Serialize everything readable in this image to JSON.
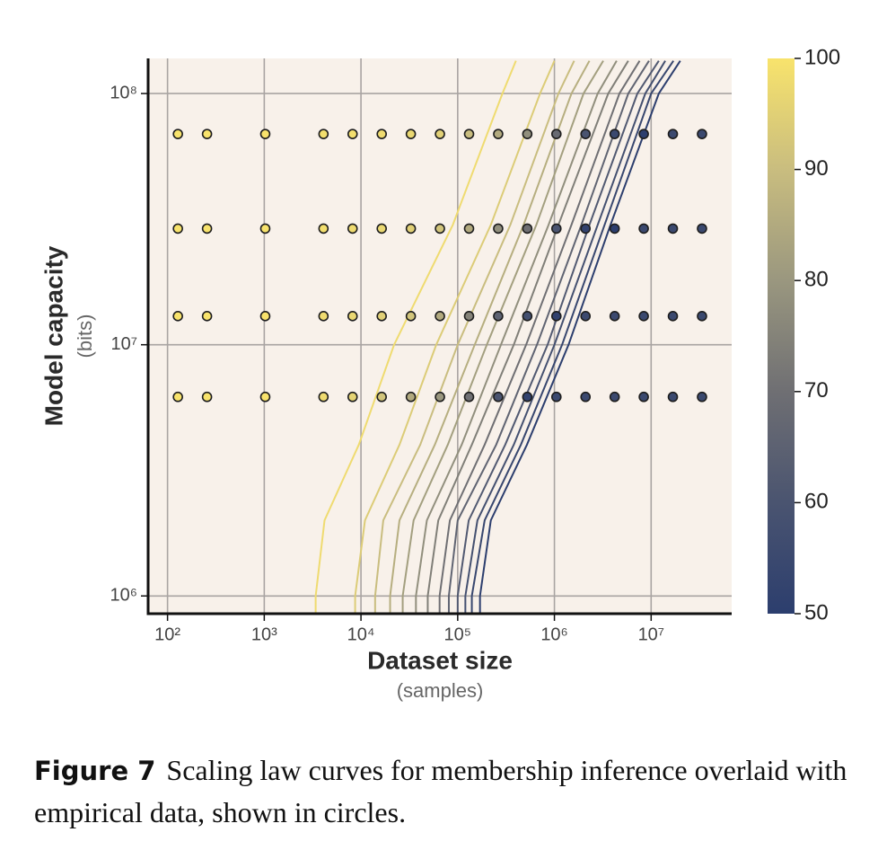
{
  "chart_data": {
    "type": "scatter",
    "xlabel": "Dataset size",
    "xlabel_unit": "(samples)",
    "ylabel": "Model capacity",
    "ylabel_unit": "(bits)",
    "log_x": true,
    "log_y": true,
    "grid": true,
    "xlim": [
      63,
      68000000
    ],
    "ylim": [
      850000,
      138000000
    ],
    "xticks": [
      {
        "value": 100,
        "label": "10²"
      },
      {
        "value": 1000,
        "label": "10³"
      },
      {
        "value": 10000,
        "label": "10⁴"
      },
      {
        "value": 100000,
        "label": "10⁵"
      },
      {
        "value": 1000000,
        "label": "10⁶"
      },
      {
        "value": 10000000,
        "label": "10⁷"
      }
    ],
    "yticks": [
      {
        "value": 1000000,
        "label": "10⁶"
      },
      {
        "value": 10000000,
        "label": "10⁷"
      },
      {
        "value": 100000000,
        "label": "10⁸"
      }
    ],
    "colormap": [
      "#2c3e6e",
      "#4a5470",
      "#6f6f73",
      "#9a977f",
      "#c9bd7f",
      "#f8e36c"
    ],
    "clim": [
      50,
      100
    ],
    "cticks": [
      50,
      60,
      70,
      80,
      90,
      100
    ],
    "x": [
      128,
      256,
      1024,
      4096,
      8192,
      16384,
      32768,
      65536,
      131072,
      262144,
      524288,
      1048576,
      2097152,
      4194304,
      8388608,
      16777216,
      33554432
    ],
    "series": [
      {
        "y": 6200000,
        "values": [
          100,
          100,
          100,
          98,
          96,
          92,
          85,
          80,
          70,
          60,
          52,
          55,
          55,
          55,
          55,
          55,
          55
        ]
      },
      {
        "y": 13000000,
        "values": [
          100,
          100,
          100,
          98,
          97,
          95,
          92,
          85,
          75,
          65,
          58,
          52,
          55,
          55,
          55,
          55,
          55
        ]
      },
      {
        "y": 29000000,
        "values": [
          100,
          100,
          100,
          99,
          98,
          97,
          95,
          92,
          85,
          78,
          70,
          60,
          52,
          50,
          55,
          55,
          55
        ]
      },
      {
        "y": 69000000,
        "values": [
          100,
          100,
          100,
          99,
          99,
          98,
          97,
          95,
          90,
          85,
          78,
          68,
          60,
          55,
          50,
          55,
          55
        ]
      }
    ],
    "contours": {
      "y": [
        850000,
        1000000,
        2000000,
        4000000,
        10000000,
        30000000,
        100000000,
        135000000
      ],
      "lines": [
        {
          "level": 98,
          "x": [
            3400,
            3400,
            4200,
            9500,
            22000,
            89000,
            290000,
            400000
          ]
        },
        {
          "level": 94,
          "x": [
            8700,
            8700,
            11000,
            25000,
            60000,
            220000,
            710000,
            1000000
          ]
        },
        {
          "level": 90,
          "x": [
            14000,
            14000,
            17000,
            41000,
            100000,
            350000,
            1100000,
            1600000
          ]
        },
        {
          "level": 86,
          "x": [
            20000,
            20000,
            25000,
            58000,
            150000,
            480000,
            1500000,
            2300000
          ]
        },
        {
          "level": 82,
          "x": [
            27000,
            27000,
            35000,
            79000,
            200000,
            650000,
            2000000,
            3200000
          ]
        },
        {
          "level": 78,
          "x": [
            37000,
            37000,
            48000,
            110000,
            280000,
            870000,
            2800000,
            4400000
          ]
        },
        {
          "level": 74,
          "x": [
            49000,
            49000,
            63000,
            140000,
            380000,
            1100000,
            3600000,
            5800000
          ]
        },
        {
          "level": 70,
          "x": [
            65000,
            65000,
            83000,
            190000,
            510000,
            1500000,
            4700000,
            7600000
          ]
        },
        {
          "level": 66,
          "x": [
            81000,
            81000,
            100000,
            250000,
            660000,
            1900000,
            5800000,
            9500000
          ]
        },
        {
          "level": 62,
          "x": [
            100000,
            100000,
            130000,
            310000,
            850000,
            2300000,
            7200000,
            12000000
          ]
        },
        {
          "level": 58,
          "x": [
            120000,
            120000,
            160000,
            380000,
            1000000,
            2800000,
            8700000,
            14000000
          ]
        },
        {
          "level": 54,
          "x": [
            140000,
            140000,
            190000,
            450000,
            1200000,
            3300000,
            10000000,
            17000000
          ]
        },
        {
          "level": 50,
          "x": [
            170000,
            170000,
            220000,
            520000,
            1400000,
            3800000,
            12000000,
            20000000
          ]
        }
      ]
    }
  },
  "caption": {
    "label": "Figure 7",
    "text": "Scaling law curves for membership inference overlaid with empirical data, shown in circles."
  }
}
